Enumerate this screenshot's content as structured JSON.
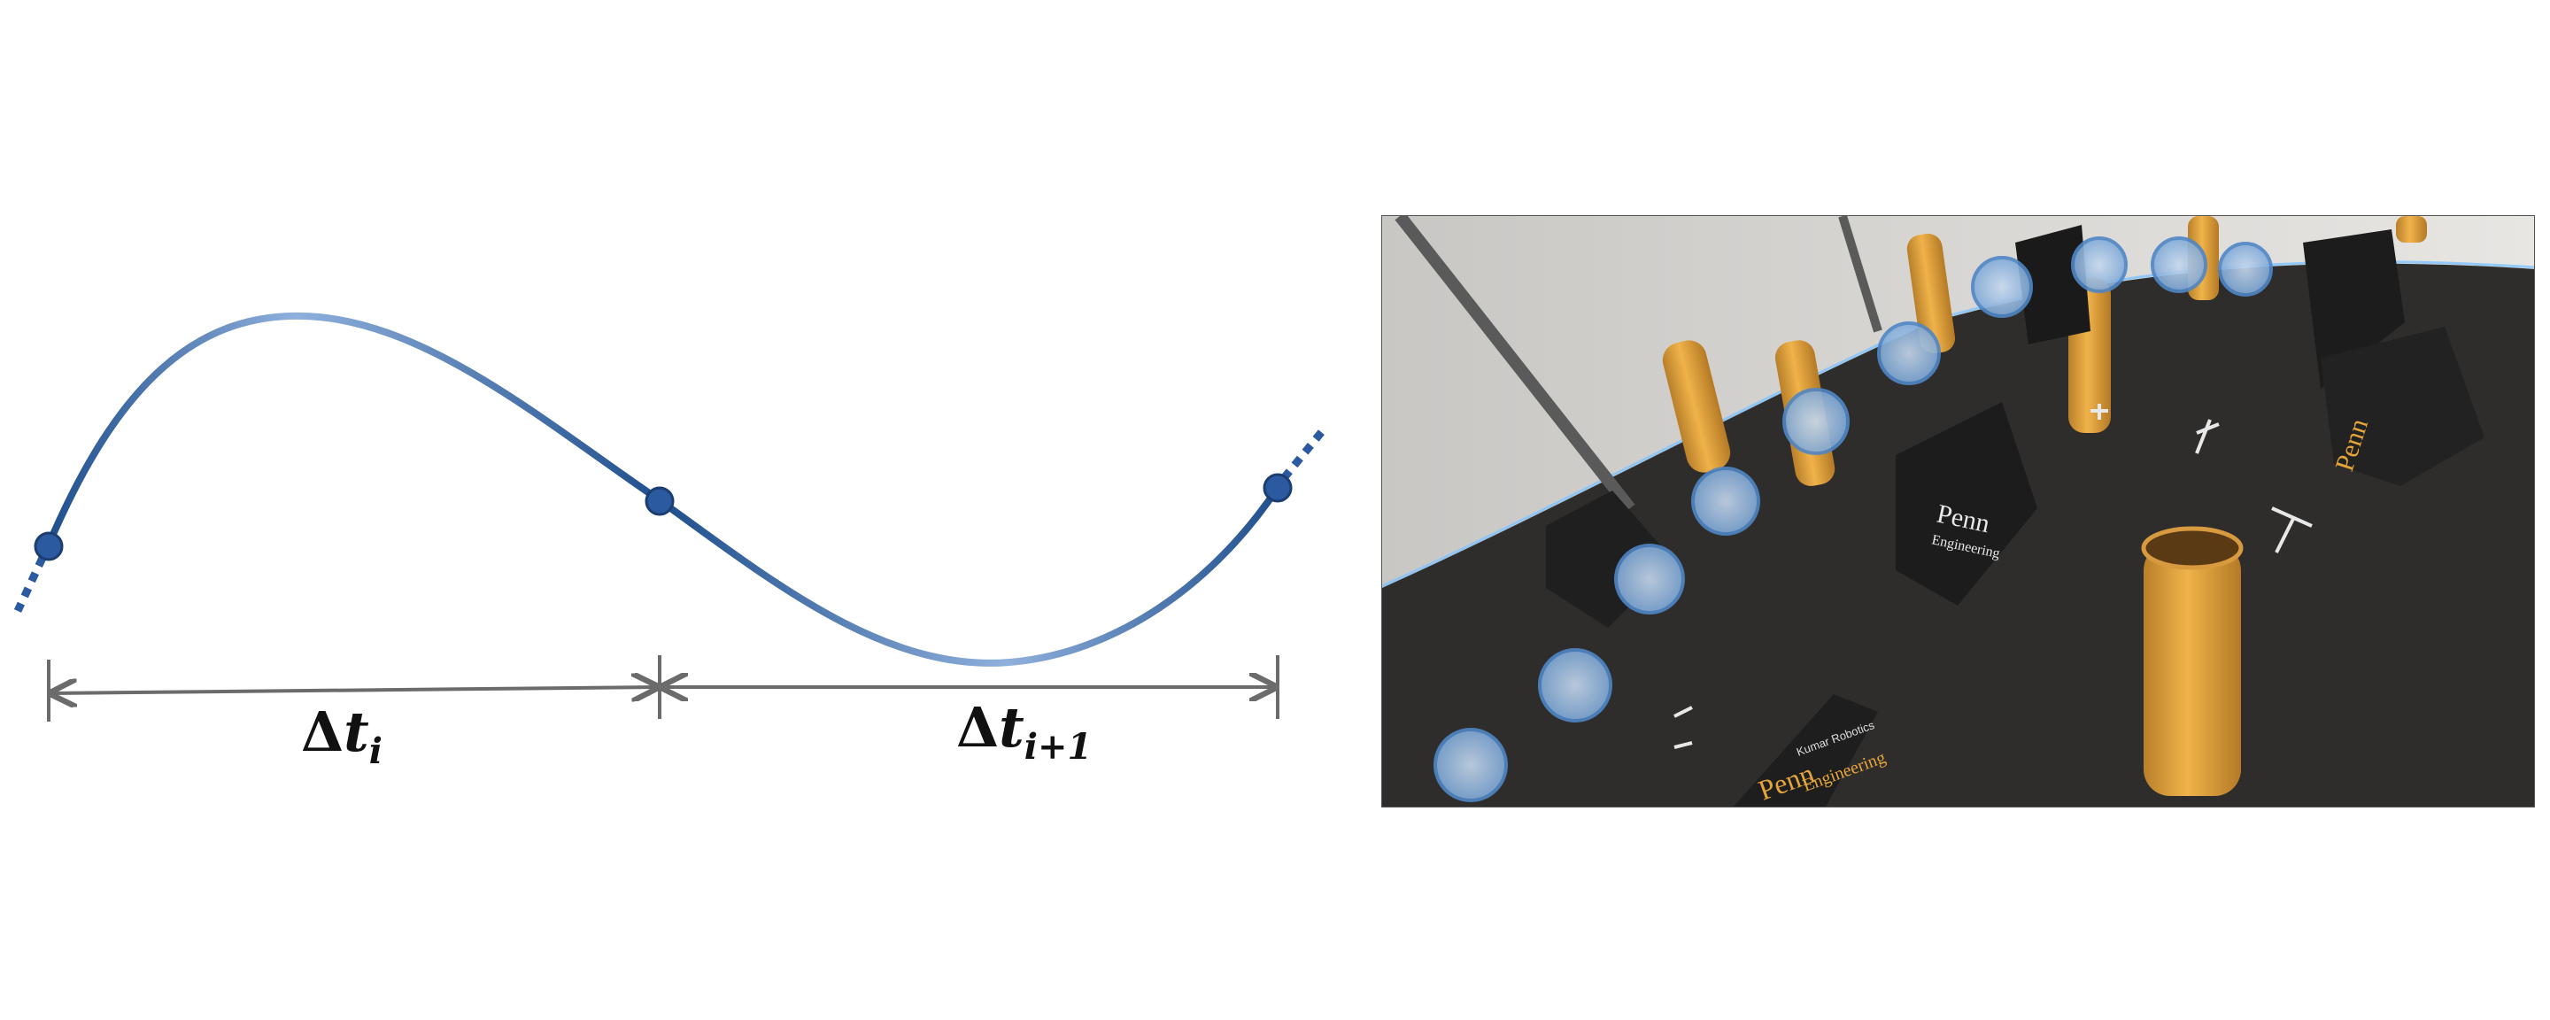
{
  "diagram": {
    "intervals": [
      {
        "symbol": "Δ",
        "variable": "t",
        "subscript": "i"
      },
      {
        "symbol": "Δ",
        "variable": "t",
        "subscript": "i+1"
      }
    ],
    "colors": {
      "curve_dark": "#1f4f8c",
      "curve_light": "#8fb0dc",
      "knot": "#2b5aa0",
      "knot_stroke": "#1b3d70",
      "arrow": "#6b6b6b"
    }
  },
  "photo": {
    "box_labels": [
      "Penn",
      "Engineering",
      "Kumar Robotics"
    ],
    "colors": {
      "floor": "#2e2d2c",
      "wall": "#d9d7d4",
      "tube": "#e6a53a",
      "box": "#1c1c1c",
      "drone_marker": "#7fb0e6"
    }
  }
}
